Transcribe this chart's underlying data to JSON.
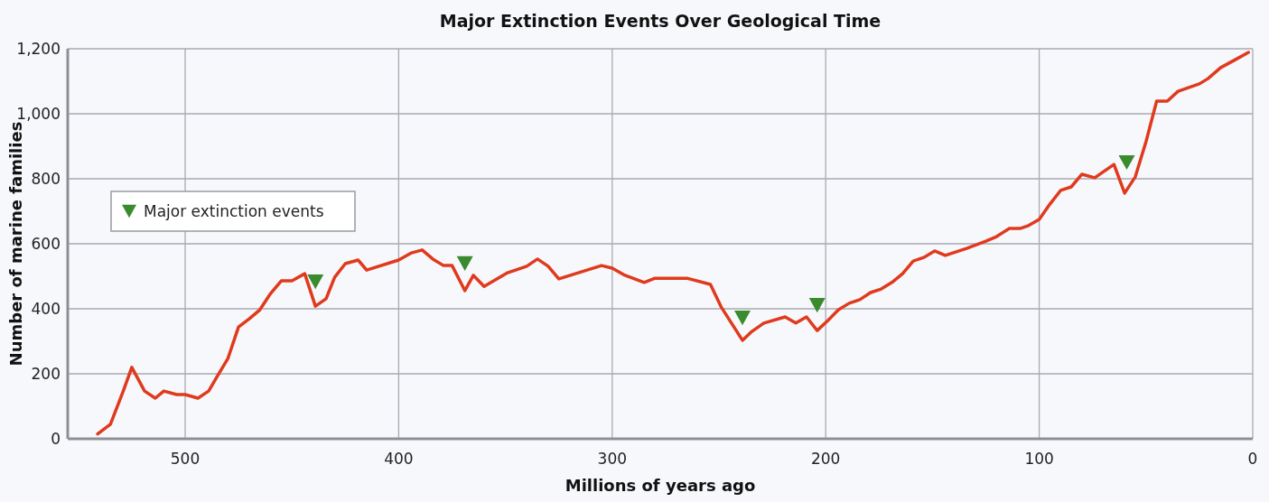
{
  "chart_data": {
    "type": "line",
    "title": "Major Extinction Events Over Geological Time",
    "xlabel": "Millions of years ago",
    "ylabel": "Number of marine families",
    "xlim": [
      555,
      0
    ],
    "ylim": [
      0,
      1200
    ],
    "xticks": [
      500,
      400,
      300,
      200,
      100,
      0
    ],
    "yticks": [
      0,
      {
        "value": 200,
        "label": "200"
      },
      {
        "value": 400,
        "label": "400"
      },
      {
        "value": 600,
        "label": "600"
      },
      {
        "value": 800,
        "label": "800"
      },
      {
        "value": 1000,
        "label": "1,000"
      },
      {
        "value": 1200,
        "label": "1,200"
      }
    ],
    "grid": true,
    "legend": "top left",
    "series": [
      {
        "color": "#e03a1e",
        "marker": "none",
        "x": [
          541,
          535,
          529,
          525,
          519,
          514,
          510,
          504,
          500,
          494,
          489,
          485,
          480,
          475,
          470,
          465,
          460,
          455,
          450,
          444,
          439,
          434,
          430,
          425,
          419,
          415,
          400,
          394,
          389,
          384,
          379,
          375,
          369,
          365,
          360,
          349,
          340,
          335,
          330,
          325,
          305,
          300,
          294,
          285,
          280,
          265,
          254,
          249,
          239,
          235,
          229,
          219,
          214,
          209,
          204,
          199,
          194,
          189,
          184,
          179,
          174,
          169,
          164,
          159,
          154,
          149,
          144,
          134,
          125,
          120,
          114,
          109,
          105,
          100,
          95,
          90,
          85,
          80,
          74,
          65,
          60,
          55,
          50,
          45,
          40,
          35,
          25,
          21,
          15,
          8,
          2
        ],
        "values": [
          15,
          45,
          147,
          220,
          147,
          125,
          147,
          136,
          136,
          125,
          147,
          192,
          247,
          344,
          369,
          397,
          447,
          486,
          486,
          508,
          408,
          431,
          497,
          539,
          550,
          519,
          550,
          572,
          581,
          553,
          533,
          533,
          456,
          503,
          469,
          511,
          531,
          553,
          531,
          492,
          533,
          525,
          503,
          481,
          494,
          494,
          475,
          406,
          303,
          328,
          356,
          375,
          356,
          375,
          333,
          364,
          397,
          417,
          428,
          450,
          461,
          481,
          508,
          547,
          558,
          578,
          564,
          586,
          608,
          622,
          647,
          647,
          656,
          675,
          722,
          764,
          775,
          814,
          803,
          844,
          756,
          806,
          914,
          1039,
          1039,
          1069,
          1092,
          1108,
          1142,
          1167,
          1189
        ]
      },
      {
        "type": "scatter",
        "name": "Major extinction events",
        "color": "#3a8a2e",
        "marker": "triangle",
        "x": [
          439,
          369,
          239,
          204,
          59
        ],
        "values": [
          483,
          539,
          372,
          411,
          850
        ]
      }
    ]
  }
}
